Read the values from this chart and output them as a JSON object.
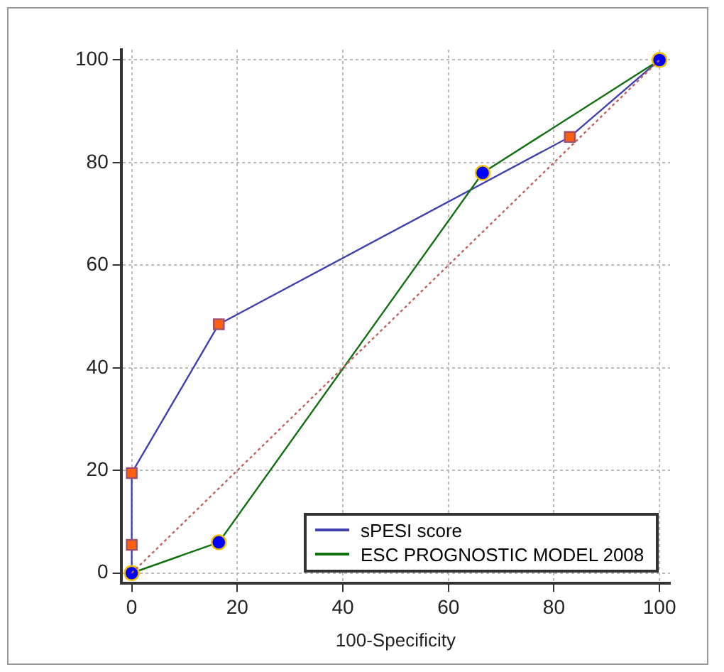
{
  "chart_data": {
    "type": "line",
    "xlabel": "100-Specificity",
    "xlim": [
      -2,
      102
    ],
    "ylim": [
      -2,
      102
    ],
    "xticks": [
      0,
      20,
      40,
      60,
      80,
      100
    ],
    "yticks": [
      0,
      20,
      40,
      60,
      80,
      100
    ],
    "grid": true,
    "legend": "bottom right",
    "series": [
      {
        "name": "sPESI score",
        "color": "#4040b0",
        "x": [
          0,
          0,
          0,
          16.5,
          83,
          100
        ],
        "values": [
          0,
          5.5,
          19.5,
          48.5,
          85,
          100
        ],
        "marker": "square",
        "colors": [
          "#ff6010",
          "#ff6010",
          "#ff6010",
          "#ff6010",
          "#ff6010",
          "#ff6010"
        ]
      },
      {
        "name": "ESC PROGNOSTIC MODEL 2008",
        "color": "#107010",
        "x": [
          0,
          16.5,
          66.5,
          100
        ],
        "values": [
          0,
          6,
          78,
          100
        ],
        "marker": "circle",
        "colors": [
          "#0000ff",
          "#0000ff",
          "#0000ff",
          "#0000ff"
        ]
      },
      {
        "color": "#c06060",
        "x": [
          0,
          100
        ],
        "values": [
          0,
          100
        ],
        "marker": "none",
        "line_style": "dotted"
      }
    ]
  }
}
